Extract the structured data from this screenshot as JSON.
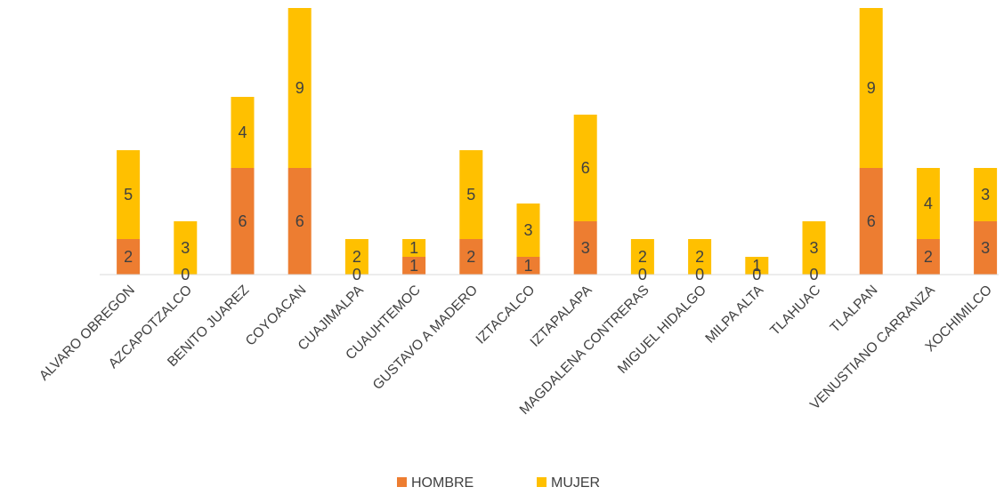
{
  "chart_data": {
    "type": "bar",
    "stacked": true,
    "categories": [
      "ALVARO OBREGON",
      "AZCAPOTZALCO",
      "BENITO JUAREZ",
      "COYOACAN",
      "CUAJIMALPA",
      "CUAUHTEMOC",
      "GUSTAVO A MADERO",
      "IZTACALCO",
      "IZTAPALAPA",
      "MAGDALENA CONTRERAS",
      "MIGUEL HIDALGO",
      "MILPA ALTA",
      "TLAHUAC",
      "TLALPAN",
      "VENUSTIANO CARRANZA",
      "XOCHIMILCO"
    ],
    "series": [
      {
        "name": "HOMBRE",
        "color": "#ED7D31",
        "values": [
          2,
          0,
          6,
          6,
          0,
          1,
          2,
          1,
          3,
          0,
          0,
          0,
          0,
          6,
          2,
          3
        ]
      },
      {
        "name": "MUJER",
        "color": "#FFC000",
        "values": [
          5,
          3,
          4,
          9,
          2,
          1,
          5,
          3,
          6,
          2,
          2,
          1,
          3,
          9,
          4,
          3
        ]
      }
    ],
    "title": "",
    "xlabel": "",
    "ylabel": "",
    "ylim": [
      0,
      15
    ],
    "grid": false,
    "data_labels": true,
    "legend": {
      "position": "bottom",
      "entries": [
        "HOMBRE",
        "MUJER"
      ]
    }
  }
}
